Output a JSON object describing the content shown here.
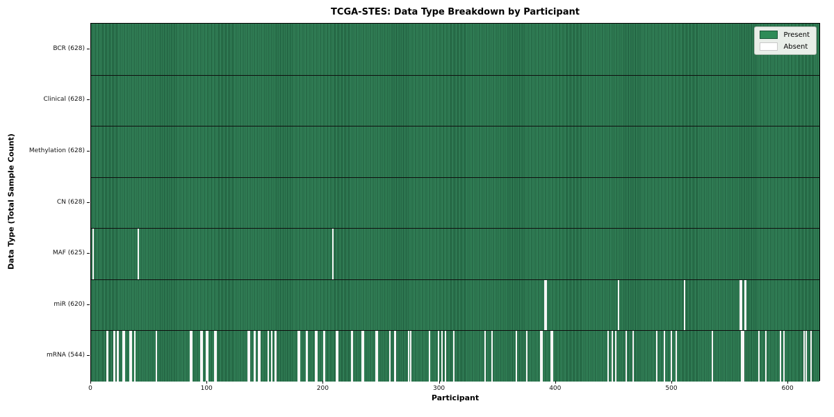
{
  "chart_data": {
    "type": "heatmap",
    "title": "TCGA-STES: Data Type Breakdown by Participant",
    "xlabel": "Participant",
    "ylabel": "Data Type (Total Sample Count)",
    "n_participants": 628,
    "x_ticks": [
      0,
      100,
      200,
      300,
      400,
      500,
      600
    ],
    "grid": false,
    "legend_position": "upper right",
    "legend": [
      {
        "label": "Present",
        "color": "#2e8b57",
        "edge": "#1c573a"
      },
      {
        "label": "Absent",
        "color": "#ffffff",
        "edge": "#c9c9c9"
      }
    ],
    "colors": {
      "present_fill": "#2f7e53",
      "present_edge": "#1c573a",
      "absent_fill": "#f6f6f6",
      "row_separator": "#0e0e0e",
      "frame": "#000000"
    },
    "rows": [
      {
        "label": "BCR (628)",
        "data_type": "BCR",
        "present_count": 628,
        "absent_indices": []
      },
      {
        "label": "Clinical (628)",
        "data_type": "Clinical",
        "present_count": 628,
        "absent_indices": []
      },
      {
        "label": "Methylation (628)",
        "data_type": "Methylation",
        "present_count": 628,
        "absent_indices": []
      },
      {
        "label": "CN (628)",
        "data_type": "CN",
        "present_count": 628,
        "absent_indices": []
      },
      {
        "label": "MAF (625)",
        "data_type": "MAF",
        "present_count": 625,
        "absent_indices": [
          1,
          40,
          208
        ]
      },
      {
        "label": "miR (620)",
        "data_type": "miR",
        "present_count": 620,
        "absent_indices": [
          391,
          392,
          454,
          511,
          559,
          560,
          563,
          564
        ]
      },
      {
        "label": "mRNA (544)",
        "data_type": "mRNA",
        "present_count": 544,
        "absent_indices": [
          13,
          14,
          19,
          20,
          22,
          23,
          27,
          28,
          33,
          34,
          37,
          56,
          85,
          86,
          94,
          95,
          99,
          100,
          106,
          107,
          135,
          136,
          140,
          141,
          144,
          145,
          152,
          155,
          158,
          159,
          178,
          179,
          185,
          186,
          193,
          194,
          200,
          201,
          211,
          212,
          224,
          225,
          233,
          234,
          245,
          246,
          257,
          261,
          262,
          273,
          275,
          291,
          299,
          302,
          305,
          312,
          339,
          345,
          366,
          375,
          387,
          388,
          396,
          397,
          445,
          449,
          452,
          461,
          467,
          487,
          494,
          500,
          504,
          535,
          560,
          561,
          562,
          575,
          581,
          594,
          597,
          614,
          616,
          620
        ]
      }
    ]
  }
}
